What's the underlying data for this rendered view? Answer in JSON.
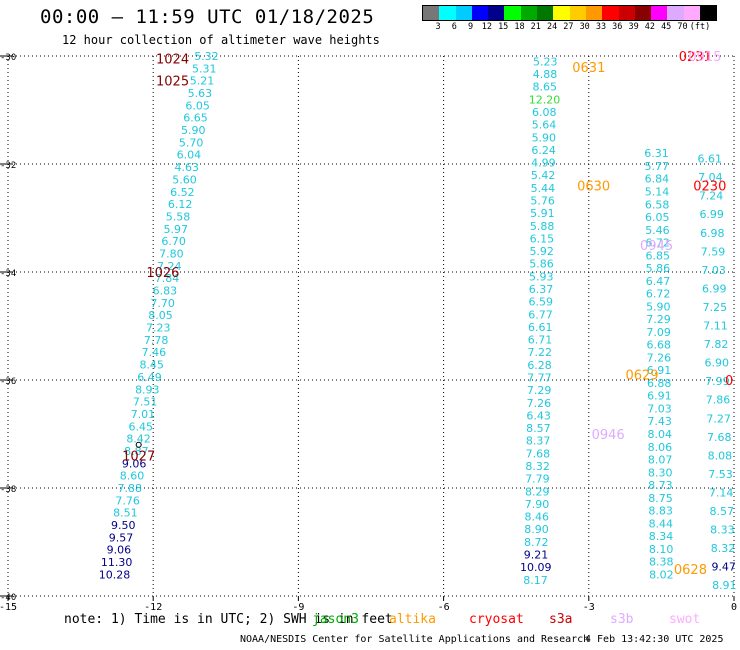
{
  "title": "00:00 – 11:59 UTC 01/18/2025",
  "subtitle": "12 hour collection of altimeter wave heights",
  "legend": {
    "colors": [
      "#777777",
      "#00ffff",
      "#00ccff",
      "#0000ff",
      "#00008b",
      "#00ff00",
      "#00aa00",
      "#007700",
      "#ffff00",
      "#ffcc00",
      "#ff9900",
      "#ff0000",
      "#cc0000",
      "#880000",
      "#ff00ff",
      "#ddaaff",
      "#ffaaff",
      "#000000"
    ],
    "labels": [
      "3",
      "6",
      "9",
      "12",
      "15",
      "18",
      "21",
      "24",
      "27",
      "30",
      "33",
      "36",
      "39",
      "42",
      "45",
      "70",
      "(ft)"
    ]
  },
  "note": "note:  1) Time is in UTC; 2) SWH is in feet",
  "satellites": [
    {
      "name": "jason3",
      "color": "#00aa00"
    },
    {
      "name": "altika",
      "color": "#ff9900"
    },
    {
      "name": "cryosat",
      "color": "#ff0000"
    },
    {
      "name": "s3a",
      "color": "#cc0000"
    },
    {
      "name": "s3b",
      "color": "#ddaaff"
    },
    {
      "name": "swot",
      "color": "#ffaaff"
    }
  ],
  "credit": "NOAA/NESDIS Center for Satellite Applications and Research",
  "generated": "4 Feb 13:42:30 UTC 2025",
  "chart_data": {
    "type": "scatter",
    "xlim": [
      -15,
      0
    ],
    "ylim": [
      -40,
      -30
    ],
    "x_ticks": [
      "-15",
      "-12",
      "-9",
      "-6",
      "-3",
      "0"
    ],
    "y_ticks": [
      "-30",
      "-32",
      "-34",
      "-36",
      "-38",
      "-40"
    ],
    "grid": true,
    "track_color_map": {
      "cyan": "#20c8dc",
      "navy": "#00008b",
      "green": "#33dd33"
    },
    "time_labels": [
      {
        "text": "1024",
        "lon": -11.6,
        "lat": -30.05,
        "color": "#880000"
      },
      {
        "text": "1025",
        "lon": -11.6,
        "lat": -30.45,
        "color": "#880000"
      },
      {
        "text": "1026",
        "lon": -11.8,
        "lat": -34.0,
        "color": "#880000"
      },
      {
        "text": "1027",
        "lon": -12.3,
        "lat": -37.4,
        "color": "#880000"
      },
      {
        "text": "0631",
        "lon": -3.0,
        "lat": -30.2,
        "color": "#ff9900"
      },
      {
        "text": "0630",
        "lon": -2.9,
        "lat": -32.4,
        "color": "#ff9900"
      },
      {
        "text": "0629",
        "lon": -1.9,
        "lat": -35.9,
        "color": "#ff9900"
      },
      {
        "text": "0628",
        "lon": -0.9,
        "lat": -39.5,
        "color": "#ff9900"
      },
      {
        "text": "0231",
        "lon": -0.8,
        "lat": -30.0,
        "color": "#ff0000"
      },
      {
        "text": "0230",
        "lon": -0.5,
        "lat": -32.4,
        "color": "#ff0000"
      },
      {
        "text": "0",
        "lon": -0.1,
        "lat": -36.0,
        "color": "#ff0000"
      },
      {
        "text": "0945",
        "lon": -1.6,
        "lat": -33.5,
        "color": "#ddaaff"
      },
      {
        "text": "0946",
        "lon": -2.6,
        "lat": -37.0,
        "color": "#ddaaff"
      },
      {
        "text": "0915",
        "lon": -0.6,
        "lat": -30.0,
        "color": "#ffaaff"
      }
    ],
    "tracks": [
      {
        "name": "track-1",
        "start": [
          -10.9,
          -30.0
        ],
        "end": [
          -12.8,
          -39.6
        ],
        "values": [
          "5.32",
          "5.31",
          "5.21",
          "5.63",
          "6.05",
          "6.65",
          "5.90",
          "5.70",
          "6.04",
          "4.63",
          "5.60",
          "6.52",
          "6.12",
          "5.58",
          "5.97",
          "6.70",
          "7.80",
          "7.24",
          "7.84",
          "6.83",
          "7.70",
          "8.05",
          "7.23",
          "7.78",
          "7.46",
          "8.45",
          "6.49",
          "8.93",
          "7.51",
          "7.01",
          "6.45",
          "8.42",
          "8.87",
          "9.06",
          "8.60",
          "7.88",
          "7.76",
          "8.51",
          "9.50",
          "9.57",
          "9.06",
          "11.30",
          "10.28"
        ],
        "colors": [
          "cyan",
          "cyan",
          "cyan",
          "cyan",
          "cyan",
          "cyan",
          "cyan",
          "cyan",
          "cyan",
          "cyan",
          "cyan",
          "cyan",
          "cyan",
          "cyan",
          "cyan",
          "cyan",
          "cyan",
          "cyan",
          "cyan",
          "cyan",
          "cyan",
          "cyan",
          "cyan",
          "cyan",
          "cyan",
          "cyan",
          "cyan",
          "cyan",
          "cyan",
          "cyan",
          "cyan",
          "cyan",
          "cyan",
          "navy",
          "cyan",
          "cyan",
          "cyan",
          "cyan",
          "navy",
          "navy",
          "navy",
          "navy",
          "navy"
        ]
      },
      {
        "name": "track-2",
        "start": [
          -3.9,
          -30.1
        ],
        "end": [
          -4.1,
          -39.7
        ],
        "values": [
          "5.23",
          "4.88",
          "8.65",
          "12.20",
          "6.08",
          "5.64",
          "5.90",
          "6.24",
          "4.99",
          "5.42",
          "5.44",
          "5.76",
          "5.91",
          "5.88",
          "6.15",
          "5.92",
          "5.86",
          "5.93",
          "6.37",
          "6.59",
          "6.77",
          "6.61",
          "6.71",
          "7.22",
          "6.28",
          "7.77",
          "7.29",
          "7.26",
          "6.43",
          "8.57",
          "8.37",
          "7.68",
          "8.32",
          "7.79",
          "8.29",
          "7.90",
          "8.46",
          "8.90",
          "8.72",
          "9.21",
          "10.09",
          "8.17"
        ],
        "colors": [
          "cyan",
          "cyan",
          "cyan",
          "green",
          "cyan",
          "cyan",
          "cyan",
          "cyan",
          "cyan",
          "cyan",
          "cyan",
          "cyan",
          "cyan",
          "cyan",
          "cyan",
          "cyan",
          "cyan",
          "cyan",
          "cyan",
          "cyan",
          "cyan",
          "cyan",
          "cyan",
          "cyan",
          "cyan",
          "cyan",
          "cyan",
          "cyan",
          "cyan",
          "cyan",
          "cyan",
          "cyan",
          "cyan",
          "cyan",
          "cyan",
          "cyan",
          "cyan",
          "cyan",
          "cyan",
          "navy",
          "navy",
          "cyan"
        ]
      },
      {
        "name": "track-3",
        "start": [
          -1.6,
          -31.8
        ],
        "end": [
          -1.5,
          -39.6
        ],
        "values": [
          "6.31",
          "5.77",
          "6.84",
          "5.14",
          "6.58",
          "6.05",
          "5.46",
          "6.72",
          "6.85",
          "5.86",
          "6.47",
          "6.72",
          "5.90",
          "7.29",
          "7.09",
          "6.68",
          "7.26",
          "6.91",
          "6.88",
          "6.91",
          "7.03",
          "7.43",
          "8.04",
          "8.06",
          "8.07",
          "8.30",
          "8.73",
          "8.75",
          "8.83",
          "8.44",
          "8.34",
          "8.10",
          "8.38",
          "8.02"
        ],
        "colors": [
          "cyan",
          "cyan",
          "cyan",
          "cyan",
          "cyan",
          "cyan",
          "cyan",
          "cyan",
          "cyan",
          "cyan",
          "cyan",
          "cyan",
          "cyan",
          "cyan",
          "cyan",
          "cyan",
          "cyan",
          "cyan",
          "cyan",
          "cyan",
          "cyan",
          "cyan",
          "cyan",
          "cyan",
          "cyan",
          "cyan",
          "cyan",
          "cyan",
          "cyan",
          "cyan",
          "cyan",
          "cyan",
          "cyan",
          "cyan"
        ]
      },
      {
        "name": "track-4",
        "start": [
          -0.5,
          -31.9
        ],
        "end": [
          -0.2,
          -39.8
        ],
        "values": [
          "6.61",
          "7.04",
          "7.24",
          "6.99",
          "6.98",
          "7.59",
          "7.03",
          "6.99",
          "7.25",
          "7.11",
          "7.82",
          "6.90",
          "7.99",
          "7.86",
          "7.27",
          "7.68",
          "8.08",
          "7.53",
          "7.14",
          "8.57",
          "8.33",
          "8.32",
          "9.47",
          "8.91"
        ],
        "colors": [
          "cyan",
          "cyan",
          "cyan",
          "cyan",
          "cyan",
          "cyan",
          "cyan",
          "cyan",
          "cyan",
          "cyan",
          "cyan",
          "cyan",
          "cyan",
          "cyan",
          "cyan",
          "cyan",
          "cyan",
          "cyan",
          "cyan",
          "cyan",
          "cyan",
          "cyan",
          "navy",
          "cyan"
        ]
      }
    ],
    "marker": {
      "lon": -12.3,
      "lat": -37.2
    }
  }
}
